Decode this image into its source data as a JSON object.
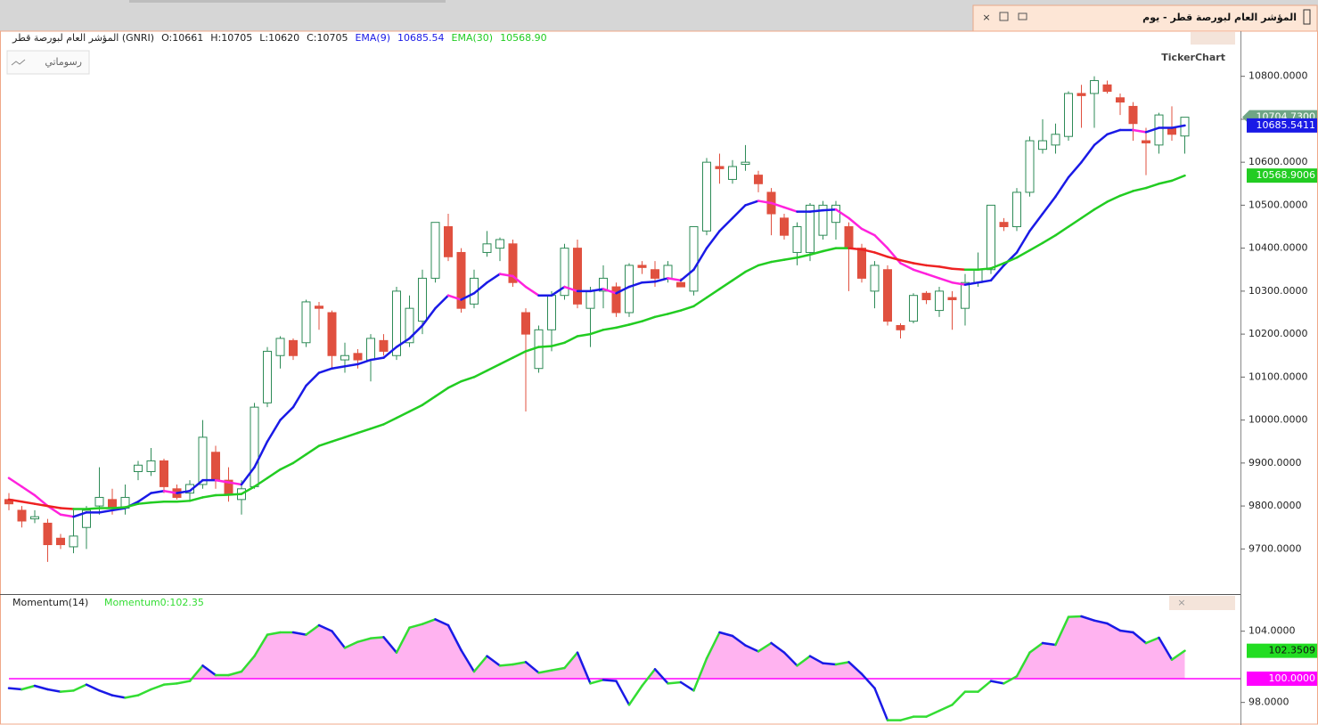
{
  "window": {
    "title": "المؤشر العام لبورصة قطر - يوم",
    "button": "رسوماتي",
    "logo": "TickerChart"
  },
  "chart_data": [
    {
      "type": "candlestick",
      "name": "المؤشر العام لبورصة قطر (GNRI)",
      "ohlc_labels": [
        "O:10661",
        "H:10705",
        "L:10620",
        "C:10705"
      ],
      "up_color": "#2e8b57",
      "down_color": "#e0503f",
      "last_label": "10704.7300",
      "last_color": "#6fa585",
      "open": [
        9815,
        9790,
        9770,
        9760,
        9725,
        9705,
        9750,
        9800,
        9815,
        9795,
        9880,
        9880,
        9905,
        9840,
        9830,
        9850,
        9925,
        9860,
        9815,
        9845,
        10040,
        10150,
        10185,
        10180,
        10265,
        10250,
        10140,
        10155,
        10140,
        10185,
        10150,
        10180,
        10230,
        10330,
        10450,
        10390,
        10270,
        10390,
        10400,
        10410,
        10250,
        10120,
        10210,
        10290,
        10400,
        10260,
        10300,
        10310,
        10250,
        10360,
        10350,
        10330,
        10320,
        10300,
        10440,
        10590,
        10560,
        10595,
        10570,
        10530,
        10470,
        10390,
        10390,
        10430,
        10460,
        10450,
        10400,
        10300,
        10350,
        10220,
        10230,
        10295,
        10255,
        10285,
        10260,
        10320,
        10350,
        10460,
        10450,
        10530,
        10630,
        10640,
        10660,
        10760,
        10760,
        10780,
        10750,
        10730,
        10650,
        10640,
        10680,
        10661
      ],
      "high": [
        9830,
        9800,
        9790,
        9770,
        9735,
        9790,
        9800,
        9890,
        9840,
        9850,
        9905,
        9935,
        9910,
        9850,
        9860,
        10000,
        9940,
        9890,
        9860,
        10040,
        10170,
        10195,
        10190,
        10280,
        10275,
        10255,
        10180,
        10165,
        10200,
        10200,
        10310,
        10290,
        10350,
        10460,
        10480,
        10400,
        10350,
        10440,
        10425,
        10420,
        10260,
        10220,
        10300,
        10410,
        10420,
        10310,
        10360,
        10320,
        10365,
        10370,
        10370,
        10370,
        10330,
        10450,
        10610,
        10620,
        10605,
        10640,
        10580,
        10540,
        10480,
        10460,
        10505,
        10510,
        10510,
        10460,
        10410,
        10370,
        10360,
        10225,
        10295,
        10300,
        10310,
        10300,
        10340,
        10390,
        10500,
        10470,
        10540,
        10660,
        10700,
        10690,
        10765,
        10780,
        10800,
        10790,
        10760,
        10740,
        10680,
        10715,
        10730,
        10705
      ],
      "low": [
        9790,
        9750,
        9760,
        9670,
        9700,
        9690,
        9700,
        9780,
        9780,
        9780,
        9860,
        9870,
        9830,
        9815,
        9810,
        9840,
        9840,
        9810,
        9780,
        9840,
        10030,
        10120,
        10140,
        10170,
        10210,
        10120,
        10110,
        10120,
        10090,
        10150,
        10140,
        10170,
        10200,
        10320,
        10370,
        10250,
        10260,
        10380,
        10370,
        10310,
        10020,
        10110,
        10160,
        10280,
        10260,
        10170,
        10260,
        10240,
        10240,
        10340,
        10310,
        10320,
        10310,
        10290,
        10430,
        10550,
        10550,
        10580,
        10530,
        10430,
        10420,
        10360,
        10370,
        10420,
        10420,
        10300,
        10320,
        10260,
        10220,
        10190,
        10225,
        10270,
        10240,
        10210,
        10220,
        10310,
        10340,
        10440,
        10440,
        10520,
        10620,
        10620,
        10650,
        10680,
        10680,
        10760,
        10710,
        10650,
        10570,
        10620,
        10650,
        10620
      ],
      "close": [
        9805,
        9765,
        9775,
        9710,
        9710,
        9730,
        9790,
        9820,
        9795,
        9820,
        9895,
        9905,
        9845,
        9820,
        9850,
        9960,
        9860,
        9825,
        9840,
        10030,
        10160,
        10190,
        10150,
        10275,
        10260,
        10150,
        10150,
        10140,
        10190,
        10160,
        10300,
        10260,
        10330,
        10460,
        10380,
        10260,
        10330,
        10410,
        10420,
        10320,
        10200,
        10210,
        10290,
        10400,
        10270,
        10300,
        10330,
        10250,
        10360,
        10355,
        10330,
        10360,
        10310,
        10450,
        10600,
        10585,
        10590,
        10600,
        10550,
        10480,
        10430,
        10450,
        10500,
        10500,
        10500,
        10400,
        10330,
        10360,
        10230,
        10210,
        10290,
        10280,
        10300,
        10280,
        10320,
        10350,
        10500,
        10450,
        10530,
        10650,
        10650,
        10665,
        10760,
        10755,
        10790,
        10765,
        10740,
        10690,
        10645,
        10710,
        10665,
        10704.73
      ],
      "overlays": [
        {
          "name": "EMA(9)",
          "color": "#1a1ae6",
          "down_color": "#ff22dd",
          "value_label": "10685.54",
          "badge": "10685.5411",
          "values": [
            9865,
            9845,
            9825,
            9800,
            9780,
            9775,
            9785,
            9785,
            9790,
            9795,
            9810,
            9830,
            9835,
            9830,
            9835,
            9860,
            9860,
            9855,
            9850,
            9890,
            9950,
            10000,
            10030,
            10080,
            10110,
            10120,
            10125,
            10130,
            10140,
            10145,
            10170,
            10190,
            10220,
            10260,
            10290,
            10280,
            10295,
            10320,
            10340,
            10335,
            10310,
            10290,
            10290,
            10310,
            10300,
            10300,
            10305,
            10295,
            10310,
            10320,
            10322,
            10330,
            10325,
            10350,
            10400,
            10440,
            10470,
            10500,
            10510,
            10505,
            10495,
            10485,
            10485,
            10488,
            10490,
            10470,
            10445,
            10430,
            10400,
            10365,
            10350,
            10340,
            10330,
            10320,
            10315,
            10320,
            10325,
            10360,
            10390,
            10440,
            10480,
            10520,
            10565,
            10600,
            10640,
            10665,
            10675,
            10675,
            10670,
            10680,
            10680,
            10685.5411
          ]
        },
        {
          "name": "EMA(30)",
          "color": "#22cc22",
          "down_color": "#ee2222",
          "value_label": "10568.90",
          "badge": "10568.9006",
          "values": [
            9815,
            9810,
            9805,
            9800,
            9795,
            9793,
            9793,
            9795,
            9795,
            9797,
            9805,
            9808,
            9810,
            9810,
            9812,
            9820,
            9825,
            9826,
            9828,
            9845,
            9865,
            9885,
            9900,
            9920,
            9940,
            9950,
            9960,
            9970,
            9980,
            9990,
            10005,
            10020,
            10035,
            10055,
            10075,
            10090,
            10100,
            10115,
            10130,
            10145,
            10160,
            10170,
            10172,
            10180,
            10195,
            10200,
            10210,
            10215,
            10222,
            10230,
            10240,
            10247,
            10255,
            10265,
            10285,
            10305,
            10325,
            10345,
            10360,
            10368,
            10373,
            10378,
            10385,
            10393,
            10400,
            10400,
            10397,
            10390,
            10380,
            10372,
            10365,
            10360,
            10357,
            10352,
            10350,
            10350,
            10353,
            10365,
            10378,
            10395,
            10412,
            10430,
            10450,
            10470,
            10490,
            10508,
            10522,
            10533,
            10540,
            10550,
            10557,
            10568.9006
          ]
        }
      ],
      "ylim": [
        9595,
        10905
      ],
      "yticks": [
        {
          "value": 9700,
          "label": "9700.0000"
        },
        {
          "value": 9800,
          "label": "9800.0000"
        },
        {
          "value": 9900,
          "label": "9900.0000"
        },
        {
          "value": 10000,
          "label": "10000.0000"
        },
        {
          "value": 10100,
          "label": "10100.0000"
        },
        {
          "value": 10200,
          "label": "10200.0000"
        },
        {
          "value": 10300,
          "label": "10300.0000"
        },
        {
          "value": 10400,
          "label": "10400.0000"
        },
        {
          "value": 10500,
          "label": "10500.0000"
        },
        {
          "value": 10600,
          "label": "10600.0000"
        },
        {
          "value": 10700,
          "label": "10700.0000"
        },
        {
          "value": 10800,
          "label": "10800.0000"
        }
      ]
    },
    {
      "type": "line",
      "name": "Momentum(14)",
      "legend": "Momentum0:102.35",
      "color": "#33dd33",
      "down_color": "#1a1ae6",
      "fill": "#ffb3f0",
      "badge": "102.3509",
      "badge_color": "#22dd22",
      "values": [
        99.2,
        99.1,
        99.4,
        99.1,
        98.9,
        99.0,
        99.5,
        99.0,
        98.6,
        98.4,
        98.6,
        99.1,
        99.5,
        99.6,
        99.8,
        101.1,
        100.3,
        100.3,
        100.6,
        101.9,
        103.7,
        103.9,
        103.9,
        103.7,
        104.5,
        104.0,
        102.6,
        103.1,
        103.4,
        103.5,
        102.2,
        104.3,
        104.6,
        105.0,
        104.5,
        102.4,
        100.6,
        101.9,
        101.1,
        101.2,
        101.4,
        100.5,
        100.7,
        100.9,
        102.2,
        99.6,
        99.9,
        99.8,
        97.8,
        99.4,
        100.8,
        99.6,
        99.7,
        99.0,
        101.7,
        103.9,
        103.6,
        102.8,
        102.3,
        103.0,
        102.2,
        101.1,
        101.9,
        101.3,
        101.2,
        101.4,
        100.4,
        99.2,
        96.5,
        96.5,
        96.8,
        96.8,
        97.3,
        97.8,
        98.9,
        98.9,
        99.8,
        99.6,
        100.2,
        102.2,
        103.0,
        102.85,
        105.2,
        105.25,
        104.9,
        104.65,
        104.05,
        103.9,
        103.0,
        103.45,
        101.6,
        102.3509
      ],
      "reference": {
        "value": 100,
        "label": "100.0000",
        "color": "#ff00ff"
      },
      "ylim": [
        96.1,
        107.05
      ],
      "yticks": [
        {
          "value": 104,
          "label": "104.0000"
        },
        {
          "value": 98,
          "label": "98.0000"
        }
      ]
    }
  ]
}
